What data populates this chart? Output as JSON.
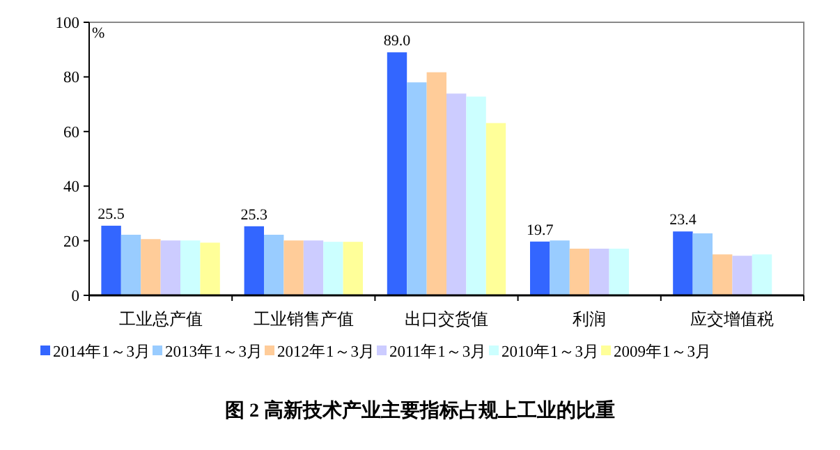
{
  "chart_data": {
    "type": "bar",
    "title": "图 2  高新技术产业主要指标占规上工业的比重",
    "ylabel": "%",
    "categories": [
      "工业总产值",
      "工业销售产值",
      "出口交货值",
      "利润",
      "应交增值税"
    ],
    "series": [
      {
        "name": "2014年1～3月",
        "color": "#3366ff",
        "values": [
          25.5,
          25.3,
          89.0,
          19.7,
          23.4
        ],
        "value_labels": [
          "25.5",
          "25.3",
          "89.0",
          "19.7",
          "23.4"
        ]
      },
      {
        "name": "2013年1～3月",
        "color": "#99ccff",
        "values": [
          22.2,
          22.2,
          78.0,
          20.1,
          22.7
        ]
      },
      {
        "name": "2012年1～3月",
        "color": "#ffcc99",
        "values": [
          20.6,
          20.1,
          81.7,
          17.1,
          15.0
        ]
      },
      {
        "name": "2011年1～3月",
        "color": "#ccccff",
        "values": [
          20.1,
          20.1,
          73.9,
          17.1,
          14.5
        ]
      },
      {
        "name": "2010年1～3月",
        "color": "#ccffff",
        "values": [
          20.1,
          19.6,
          72.8,
          17.1,
          15.0
        ]
      },
      {
        "name": "2009年1～3月",
        "color": "#ffff99",
        "values": [
          19.3,
          19.6,
          63.1,
          null,
          null
        ]
      }
    ],
    "ylim": [
      0,
      100
    ],
    "yticks": [
      0,
      20,
      40,
      60,
      80,
      100
    ],
    "legend": "bottom"
  }
}
